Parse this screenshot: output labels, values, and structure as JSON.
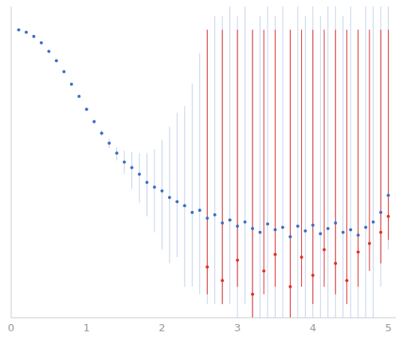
{
  "chart_data": {
    "type": "scatter",
    "log": "y",
    "tick_labels": "x",
    "grid": false,
    "xlim": [
      0,
      5.1
    ],
    "xticks": [
      0,
      1,
      2,
      3,
      4,
      5
    ],
    "ylim": [
      0.0002,
      2
    ],
    "yticks": [
      0.001,
      0.01,
      0.1,
      1
    ],
    "series": [
      {
        "color": "#3b6fc6",
        "error_color": "#c3d3ec",
        "marker": "circle",
        "x": [
          0.1,
          0.2,
          0.3,
          0.4,
          0.5,
          0.6,
          0.7,
          0.8,
          0.9,
          1.0,
          1.1,
          1.2,
          1.3,
          1.4,
          1.5,
          1.6,
          1.7,
          1.8,
          1.9,
          2.0,
          2.1,
          2.2,
          2.3,
          2.4,
          2.5,
          2.6,
          2.7,
          2.8,
          2.9,
          3.0,
          3.1,
          3.2,
          3.3,
          3.4,
          3.5,
          3.6,
          3.7,
          3.8,
          3.9,
          4.0,
          4.1,
          4.2,
          4.3,
          4.4,
          4.5,
          4.6,
          4.7,
          4.8,
          4.9,
          5.0
        ],
        "values": [
          1.0,
          0.93,
          0.82,
          0.68,
          0.53,
          0.4,
          0.29,
          0.2,
          0.14,
          0.095,
          0.066,
          0.047,
          0.035,
          0.026,
          0.02,
          0.017,
          0.014,
          0.011,
          0.0095,
          0.0085,
          0.007,
          0.0062,
          0.0055,
          0.0045,
          0.0048,
          0.0038,
          0.0042,
          0.0033,
          0.0036,
          0.003,
          0.0034,
          0.0028,
          0.0025,
          0.0032,
          0.0027,
          0.0029,
          0.0022,
          0.003,
          0.0026,
          0.0031,
          0.0024,
          0.0028,
          0.0033,
          0.0025,
          0.0027,
          0.0023,
          0.0029,
          0.0034,
          0.0045,
          0.0075
        ],
        "errors": [
          [
            0.01,
            0.01
          ],
          [
            0.01,
            0.01
          ],
          [
            0.01,
            0.01
          ],
          [
            0.01,
            0.01
          ],
          [
            0.01,
            0.01
          ],
          [
            0.008,
            0.008
          ],
          [
            0.006,
            0.006
          ],
          [
            0.005,
            0.005
          ],
          [
            0.004,
            0.004
          ],
          [
            0.004,
            0.004
          ],
          [
            0.004,
            0.004
          ],
          [
            0.004,
            0.004
          ],
          [
            0.005,
            0.005
          ],
          [
            0.005,
            0.005
          ],
          [
            0.006,
            0.008
          ],
          [
            0.008,
            0.01
          ],
          [
            0.008,
            0.012
          ],
          [
            0.007,
            0.015
          ],
          [
            0.007,
            0.02
          ],
          [
            0.007,
            0.03
          ],
          [
            0.006,
            0.05
          ],
          [
            0.005,
            0.08
          ],
          [
            0.005,
            0.1
          ],
          [
            0.004,
            0.2
          ],
          [
            0.0044,
            0.5
          ],
          [
            0.0035,
            1.0
          ],
          [
            0.0039,
            1.5
          ],
          [
            0.003,
            1.5
          ],
          [
            0.0033,
            2.0
          ],
          [
            0.0028,
            1.5
          ],
          [
            0.0031,
            2.0
          ],
          [
            0.0026,
            1.0
          ],
          [
            0.0023,
            1.5
          ],
          [
            0.003,
            2.0
          ],
          [
            0.0025,
            1.5
          ],
          [
            0.0027,
            2.0
          ],
          [
            0.002,
            1.0
          ],
          [
            0.0028,
            2.0
          ],
          [
            0.0024,
            1.5
          ],
          [
            0.0029,
            2.0
          ],
          [
            0.0022,
            1.5
          ],
          [
            0.0026,
            2.0
          ],
          [
            0.0031,
            2.0
          ],
          [
            0.0023,
            1.5
          ],
          [
            0.0025,
            2.0
          ],
          [
            0.0021,
            1.0
          ],
          [
            0.0027,
            2.0
          ],
          [
            0.0032,
            2.0
          ],
          [
            0.004,
            2.0
          ],
          [
            0.006,
            2.0
          ]
        ]
      },
      {
        "color": "#e0302a",
        "marker": "circle",
        "x": [
          2.6,
          2.8,
          3.0,
          3.2,
          3.35,
          3.5,
          3.7,
          3.85,
          4.0,
          4.15,
          4.3,
          4.45,
          4.6,
          4.75,
          4.9,
          5.0
        ],
        "values": [
          0.0009,
          0.0006,
          0.0011,
          0.0004,
          0.0008,
          0.0013,
          0.0005,
          0.0012,
          0.0007,
          0.0015,
          0.001,
          0.0006,
          0.0014,
          0.0018,
          0.0025,
          0.004
        ],
        "errors": [
          [
            0.0005,
            1.0
          ],
          [
            0.0003,
            1.0
          ],
          [
            0.0006,
            1.0
          ],
          [
            0.0002,
            1.0
          ],
          [
            0.0004,
            1.0
          ],
          [
            0.0008,
            1.0
          ],
          [
            0.0003,
            1.0
          ],
          [
            0.0007,
            1.0
          ],
          [
            0.0004,
            1.0
          ],
          [
            0.001,
            1.0
          ],
          [
            0.0006,
            1.0
          ],
          [
            0.0003,
            1.0
          ],
          [
            0.0009,
            1.0
          ],
          [
            0.001,
            1.0
          ],
          [
            0.0015,
            1.0
          ],
          [
            0.002,
            1.0
          ]
        ]
      }
    ]
  }
}
